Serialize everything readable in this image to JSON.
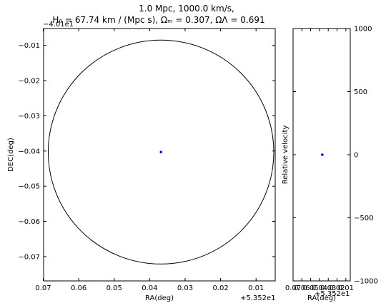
{
  "title_line1": "1.0 Mpc, 1000.0 km/s,",
  "title_line2": "H₀ = 67.74 km / (Mpc s), Ωₘ = 0.307, ΩΛ = 0.691",
  "chart_data": [
    {
      "type": "scatter",
      "xlabel": "RA(deg)",
      "ylabel": "DEC(deg)",
      "x_offset_label": "+5.352e1",
      "y_offset_label": "−4.01e1",
      "x_tick_labels": [
        "0.07",
        "0.06",
        "0.05",
        "0.04",
        "0.03",
        "0.02",
        "0.01"
      ],
      "y_tick_labels": [
        "−0.01",
        "−0.02",
        "−0.03",
        "−0.04",
        "−0.05",
        "−0.06",
        "−0.07"
      ],
      "x_axis_inverted": true,
      "xlim": [
        0.0699,
        0.0046
      ],
      "ylim": [
        -0.0769,
        -0.0052
      ],
      "points": [
        {
          "x": 0.0368,
          "y": -0.0403,
          "color": "#0000ff"
        }
      ],
      "circle": {
        "center_x": 0.0368,
        "center_y": -0.0403,
        "radius_deg": 0.0318,
        "color": "#000000"
      },
      "grid": false
    },
    {
      "type": "scatter",
      "xlabel": "RA(deg)",
      "ylabel": "Relative velocity",
      "x_offset_label": "+5.352e1",
      "x_tick_labels": [
        "0.07",
        "0.06",
        "0.05",
        "0.04",
        "0.03",
        "0.02",
        "0.01"
      ],
      "y_tick_labels": [
        "1000",
        "500",
        "0",
        "−500",
        "−1000"
      ],
      "y_ticks": [
        1000,
        500,
        0,
        -500,
        -1000
      ],
      "ylim": [
        -1000,
        1000
      ],
      "y_axis_side": "right",
      "points": [
        {
          "x": 0.0368,
          "y": 0,
          "color": "#0000ff"
        }
      ],
      "grid": false
    }
  ]
}
